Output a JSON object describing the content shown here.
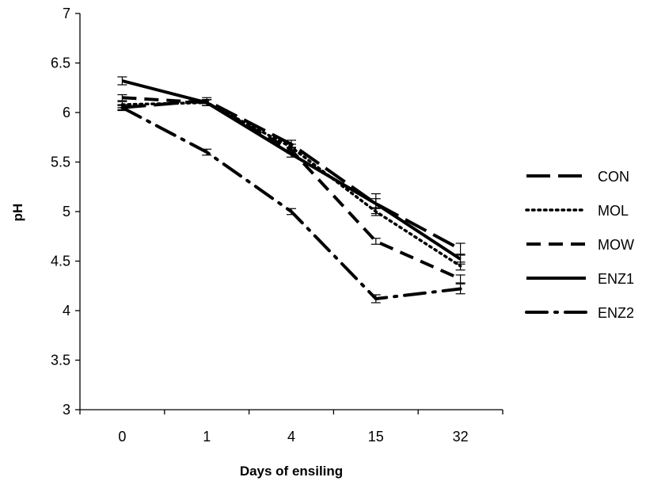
{
  "chart_data": {
    "type": "line",
    "title": "",
    "xlabel": "Days of ensiling",
    "ylabel": "pH",
    "categories": [
      "0",
      "1",
      "4",
      "15",
      "32"
    ],
    "ylim": [
      3,
      7
    ],
    "yticks": [
      "3",
      "3.5",
      "4",
      "4.5",
      "5",
      "5.5",
      "6",
      "6.5",
      "7"
    ],
    "grid": false,
    "legend_position": "right",
    "error_bars": true,
    "series": [
      {
        "name": "CON",
        "values": [
          6.05,
          6.12,
          5.68,
          5.08,
          4.62
        ],
        "errors": [
          0.03,
          0.03,
          0.04,
          0.1,
          0.06
        ],
        "style": "long-dash",
        "color": "#000000"
      },
      {
        "name": "MOL",
        "values": [
          6.08,
          6.1,
          5.65,
          5.0,
          4.45
        ],
        "errors": [
          0.03,
          0.03,
          0.03,
          0.04,
          0.04
        ],
        "style": "dot",
        "color": "#000000"
      },
      {
        "name": "MOW",
        "values": [
          6.15,
          6.1,
          5.62,
          4.7,
          4.32
        ],
        "errors": [
          0.03,
          0.03,
          0.03,
          0.03,
          0.04
        ],
        "style": "dash",
        "color": "#000000"
      },
      {
        "name": "ENZ1",
        "values": [
          6.32,
          6.1,
          5.58,
          5.08,
          4.52
        ],
        "errors": [
          0.04,
          0.03,
          0.03,
          0.05,
          0.05
        ],
        "style": "solid",
        "color": "#000000"
      },
      {
        "name": "ENZ2",
        "values": [
          6.05,
          5.6,
          5.0,
          4.12,
          4.22
        ],
        "errors": [
          0.02,
          0.03,
          0.03,
          0.04,
          0.05
        ],
        "style": "long-dash-dot",
        "color": "#000000"
      }
    ]
  }
}
